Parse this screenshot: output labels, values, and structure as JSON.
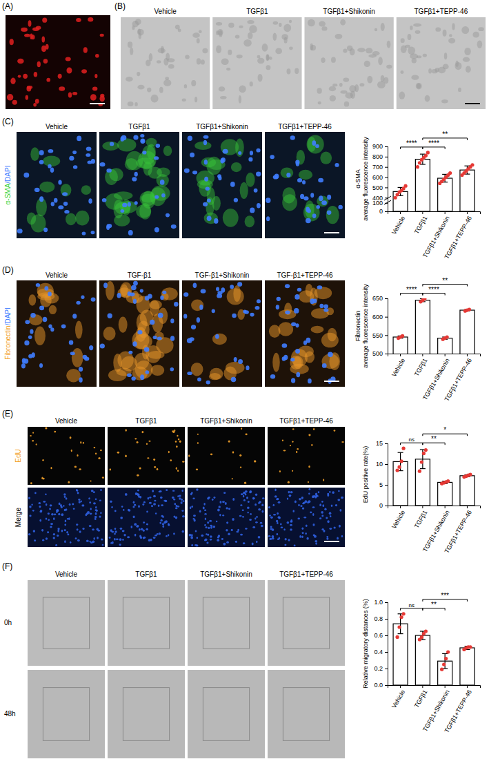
{
  "panels": [
    {
      "label": "(A)"
    },
    {
      "label": "(B)",
      "columns": [
        "Vehicle",
        "TGFβ1",
        "TGFβ1+Shikonin",
        "TGFβ1+TEPP-46"
      ]
    },
    {
      "label": "(C)",
      "columns": [
        "Vehicle",
        "TGFβ1",
        "TGFβ1+Shikonin",
        "TGFβ1+TEPP-46"
      ],
      "channel": [
        "α-SMA",
        "/DAPI"
      ]
    },
    {
      "label": "(D)",
      "columns": [
        "Vehicle",
        "TGF-β1",
        "TGF-β1+Shikonin",
        "TGF-β1+TEPP-46"
      ],
      "channel": [
        "Fibronectin",
        "/DAPI"
      ]
    },
    {
      "label": "(E)",
      "columns": [
        "Vehicle",
        "TGFβ1",
        "TGFβ1+Shikonin",
        "TGFβ1+TEPP-46"
      ],
      "rows": [
        "EdU",
        "Merge"
      ]
    },
    {
      "label": "(F)",
      "columns": [
        "Vehicle",
        "TGFβ1",
        "TGFβ1+Shikonin",
        "TGFβ1+TEPP-46"
      ],
      "rows": [
        "0h",
        "48h"
      ]
    }
  ],
  "chart_data": [
    {
      "type": "bar",
      "ylabel": [
        "α-SMA",
        "average fluorescence intensity"
      ],
      "categories": [
        "Vehicle",
        "TGFβ1",
        "TGFβ1+Shikonin",
        "TGFβ1+TEPP-46"
      ],
      "values": [
        460,
        775,
        590,
        670
      ],
      "errors": [
        40,
        50,
        38,
        40
      ],
      "points": [
        [
          400,
          430,
          455,
          470,
          490,
          515
        ],
        [
          700,
          740,
          770,
          790,
          810,
          840
        ],
        [
          540,
          560,
          580,
          600,
          620,
          640
        ],
        [
          620,
          640,
          660,
          680,
          700,
          720
        ]
      ],
      "ylim": [
        0,
        900
      ],
      "yticks": [
        0,
        100,
        400,
        500,
        600,
        700,
        800,
        900
      ],
      "color": "#ffffff",
      "marker": "circle",
      "comparisons": [
        {
          "from": 0,
          "to": 1,
          "label": "****"
        },
        {
          "from": 1,
          "to": 2,
          "label": "****"
        },
        {
          "from": 1,
          "to": 3,
          "label": "**"
        }
      ]
    },
    {
      "type": "bar",
      "ylabel": [
        "Fibronectin",
        "average fluorescence intensity"
      ],
      "categories": [
        "Vehicle",
        "TGFβ1",
        "TGFβ1+Shikonin",
        "TGFβ1+TEPP-46"
      ],
      "values": [
        545,
        645,
        542,
        618
      ],
      "errors": [
        3,
        4,
        3,
        2
      ],
      "points": [
        [
          542,
          545,
          548
        ],
        [
          641,
          645,
          649
        ],
        [
          539,
          542,
          545
        ],
        [
          616,
          618,
          620
        ]
      ],
      "ylim": [
        500,
        650
      ],
      "yticks": [
        500,
        550,
        600,
        650
      ],
      "color": "#ffffff",
      "marker": "circle",
      "comparisons": [
        {
          "from": 0,
          "to": 1,
          "label": "****"
        },
        {
          "from": 1,
          "to": 2,
          "label": "****"
        },
        {
          "from": 1,
          "to": 3,
          "label": "**"
        }
      ]
    },
    {
      "type": "bar",
      "ylabel": [
        "EdU positive rate(%)"
      ],
      "categories": [
        "Vehicle",
        "TGFβ1",
        "TGFβ1+Shikonin",
        "TGFβ1+TEPP-46"
      ],
      "values": [
        10.6,
        11.2,
        5.6,
        7.2
      ],
      "errors": [
        2.2,
        2.3,
        0.3,
        0.25
      ],
      "points": [
        [
          8.5,
          9.3,
          10.7,
          13.8
        ],
        [
          8.3,
          10.5,
          12.6,
          13.4
        ],
        [
          5.3,
          5.5,
          5.7,
          5.9
        ],
        [
          6.9,
          7.1,
          7.3,
          7.5
        ]
      ],
      "ylim": [
        0,
        15
      ],
      "yticks": [
        0,
        5,
        10,
        15
      ],
      "color": "#ffffff",
      "marker": "circle",
      "comparisons": [
        {
          "from": 0,
          "to": 1,
          "label": "ns"
        },
        {
          "from": 1,
          "to": 2,
          "label": "**"
        },
        {
          "from": 1,
          "to": 3,
          "label": "*"
        }
      ]
    },
    {
      "type": "bar",
      "ylabel": [
        "Relative migratory distances (%)"
      ],
      "categories": [
        "Vehicle",
        "TGFβ1",
        "TGFβ1+Shikonin",
        "TGFβ1+TEPP-46"
      ],
      "values": [
        0.74,
        0.6,
        0.29,
        0.45
      ],
      "errors": [
        0.12,
        0.05,
        0.09,
        0.02
      ],
      "points": [
        [
          0.58,
          0.7,
          0.82,
          0.86
        ],
        [
          0.55,
          0.58,
          0.62,
          0.65
        ],
        [
          0.19,
          0.25,
          0.32,
          0.4
        ],
        [
          0.43,
          0.45,
          0.46,
          0.46
        ]
      ],
      "ylim": [
        0,
        1
      ],
      "yticks": [
        {
          "value": 0,
          "label": "0.0"
        },
        0.2,
        0.4,
        0.6,
        0.8,
        {
          "value": 1,
          "label": "1.0"
        }
      ],
      "color": "#ffffff",
      "marker": "circle",
      "comparisons": [
        {
          "from": 0,
          "to": 1,
          "label": "ns"
        },
        {
          "from": 1,
          "to": 2,
          "label": "**"
        },
        {
          "from": 1,
          "to": 3,
          "label": "***"
        }
      ]
    }
  ]
}
